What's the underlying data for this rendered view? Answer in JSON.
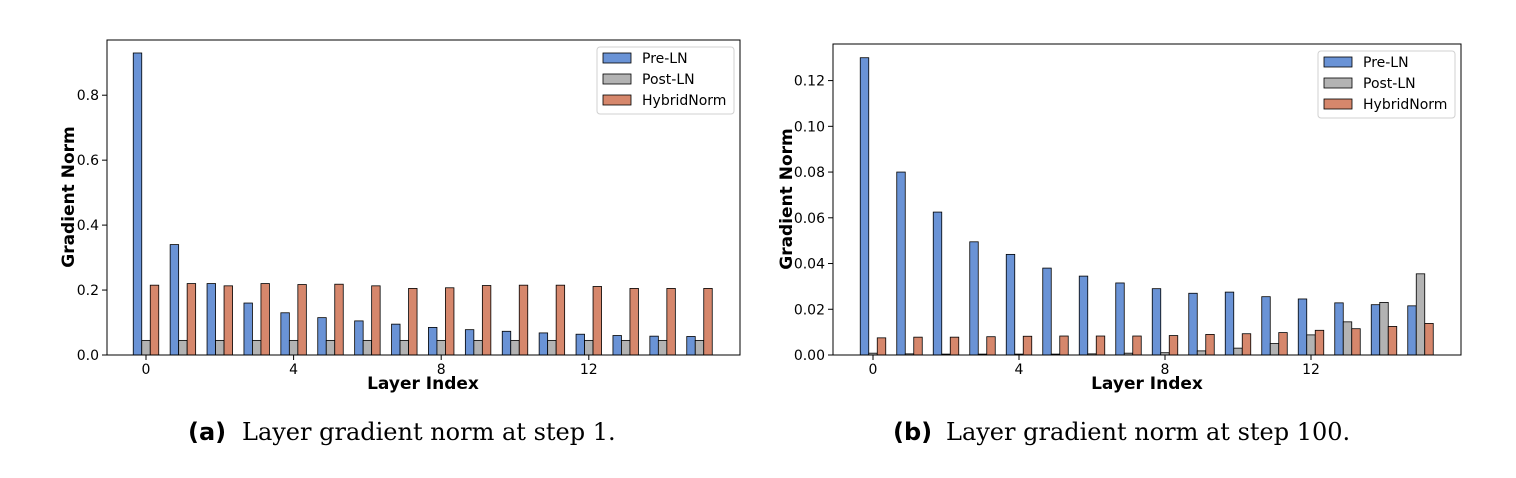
{
  "chart_data": [
    {
      "type": "bar",
      "xlabel": "Layer Index",
      "ylabel": "Gradient Norm",
      "ylim": [
        0,
        0.97
      ],
      "yticks": [
        0.0,
        0.2,
        0.4,
        0.6,
        0.8
      ],
      "ytick_labels": [
        "0.0",
        "0.2",
        "0.4",
        "0.6",
        "0.8"
      ],
      "xticks": [
        0,
        4,
        8,
        12
      ],
      "xtick_labels": [
        "0",
        "4",
        "8",
        "12"
      ],
      "categories": [
        0,
        1,
        2,
        3,
        4,
        5,
        6,
        7,
        8,
        9,
        10,
        11,
        12,
        13,
        14,
        15
      ],
      "legend_position": "top-right",
      "grid": false,
      "series": [
        {
          "name": "Pre-LN",
          "color": "#6a93d6",
          "values": [
            0.93,
            0.34,
            0.22,
            0.16,
            0.13,
            0.115,
            0.105,
            0.095,
            0.085,
            0.078,
            0.073,
            0.068,
            0.064,
            0.06,
            0.058,
            0.057
          ]
        },
        {
          "name": "Post-LN",
          "color": "#b3b3b3",
          "values": [
            0.045,
            0.045,
            0.045,
            0.045,
            0.045,
            0.045,
            0.045,
            0.045,
            0.045,
            0.045,
            0.045,
            0.045,
            0.045,
            0.045,
            0.045,
            0.045
          ]
        },
        {
          "name": "HybridNorm",
          "color": "#d6876c",
          "values": [
            0.215,
            0.22,
            0.213,
            0.22,
            0.217,
            0.218,
            0.213,
            0.205,
            0.207,
            0.214,
            0.215,
            0.215,
            0.211,
            0.205,
            0.205,
            0.205
          ]
        }
      ],
      "caption_tag": "(a)",
      "caption": "Layer gradient norm at step 1."
    },
    {
      "type": "bar",
      "xlabel": "Layer Index",
      "ylabel": "Gradient Norm",
      "ylim": [
        0,
        0.136
      ],
      "yticks": [
        0.0,
        0.02,
        0.04,
        0.06,
        0.08,
        0.1,
        0.12
      ],
      "ytick_labels": [
        "0.00",
        "0.02",
        "0.04",
        "0.06",
        "0.08",
        "0.10",
        "0.12"
      ],
      "xticks": [
        0,
        4,
        8,
        12
      ],
      "xtick_labels": [
        "0",
        "4",
        "8",
        "12"
      ],
      "categories": [
        0,
        1,
        2,
        3,
        4,
        5,
        6,
        7,
        8,
        9,
        10,
        11,
        12,
        13,
        14,
        15
      ],
      "legend_position": "top-right",
      "grid": false,
      "series": [
        {
          "name": "Pre-LN",
          "color": "#6a93d6",
          "values": [
            0.13,
            0.08,
            0.0625,
            0.0495,
            0.044,
            0.038,
            0.0345,
            0.0315,
            0.029,
            0.027,
            0.0275,
            0.0255,
            0.0245,
            0.0228,
            0.022,
            0.0215
          ]
        },
        {
          "name": "Post-LN",
          "color": "#b3b3b3",
          "values": [
            0.0008,
            0.0005,
            0.0004,
            0.0004,
            0.0004,
            0.0004,
            0.0005,
            0.0008,
            0.001,
            0.0018,
            0.003,
            0.005,
            0.0088,
            0.0145,
            0.023,
            0.0355
          ]
        },
        {
          "name": "HybridNorm",
          "color": "#d6876c",
          "values": [
            0.0075,
            0.0078,
            0.0078,
            0.008,
            0.0082,
            0.0083,
            0.0083,
            0.0083,
            0.0085,
            0.009,
            0.0093,
            0.0098,
            0.0108,
            0.0115,
            0.0125,
            0.0138
          ]
        }
      ],
      "caption_tag": "(b)",
      "caption": "Layer gradient norm at step 100."
    }
  ]
}
